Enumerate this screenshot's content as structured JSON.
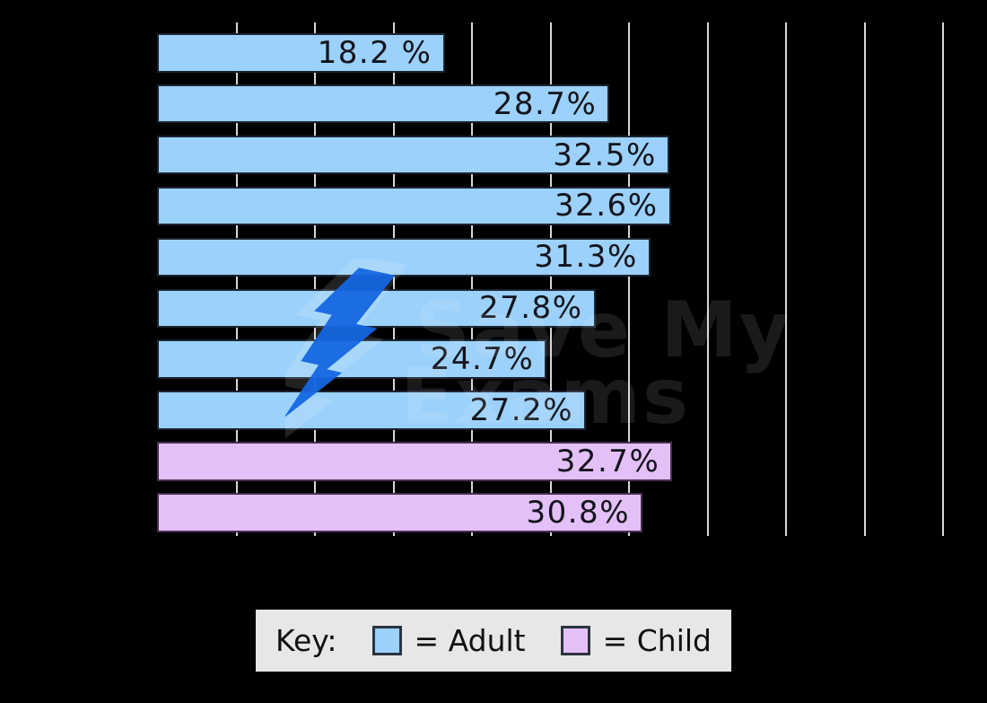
{
  "page": {
    "background": "#000000"
  },
  "chart_data": {
    "type": "bar",
    "orientation": "horizontal",
    "bars": [
      {
        "value": 18.2,
        "label": "18.2 %",
        "group": "Adult"
      },
      {
        "value": 28.7,
        "label": "28.7%",
        "group": "Adult"
      },
      {
        "value": 32.5,
        "label": "32.5%",
        "group": "Adult"
      },
      {
        "value": 32.6,
        "label": "32.6%",
        "group": "Adult"
      },
      {
        "value": 31.3,
        "label": "31.3%",
        "group": "Adult"
      },
      {
        "value": 27.8,
        "label": "27.8%",
        "group": "Adult"
      },
      {
        "value": 24.7,
        "label": "24.7%",
        "group": "Adult"
      },
      {
        "value": 27.2,
        "label": "27.2%",
        "group": "Adult"
      },
      {
        "value": 32.7,
        "label": "32.7%",
        "group": "Child"
      },
      {
        "value": 30.8,
        "label": "30.8%",
        "group": "Child"
      }
    ],
    "groups": {
      "Adult": {
        "fill": "#9bd1fa",
        "border": "#1c2430"
      },
      "Child": {
        "fill": "#e4c0f8",
        "border": "#47304f"
      }
    },
    "axis": {
      "min": 0,
      "max": 52.9,
      "grid_interval": 5,
      "gridline_color": "#d6d6d6",
      "tick_labels_visible": false,
      "category_labels_visible": false
    },
    "value_label_color": "#14141c",
    "legend_position": "bottom"
  },
  "legend": {
    "title": "Key:",
    "entries": [
      {
        "group": "Adult",
        "label": "= Adult",
        "swatch_color": "#9bd1fa"
      },
      {
        "group": "Child",
        "label": "= Child",
        "swatch_color": "#e4c0f8"
      }
    ],
    "background": "#e7e7e7",
    "text_color": "#111111"
  },
  "watermark": {
    "name": "save-my-exams-logo",
    "text_line1": "Save My",
    "text_line2": "Exams",
    "bolt_color": "#1566e2"
  }
}
